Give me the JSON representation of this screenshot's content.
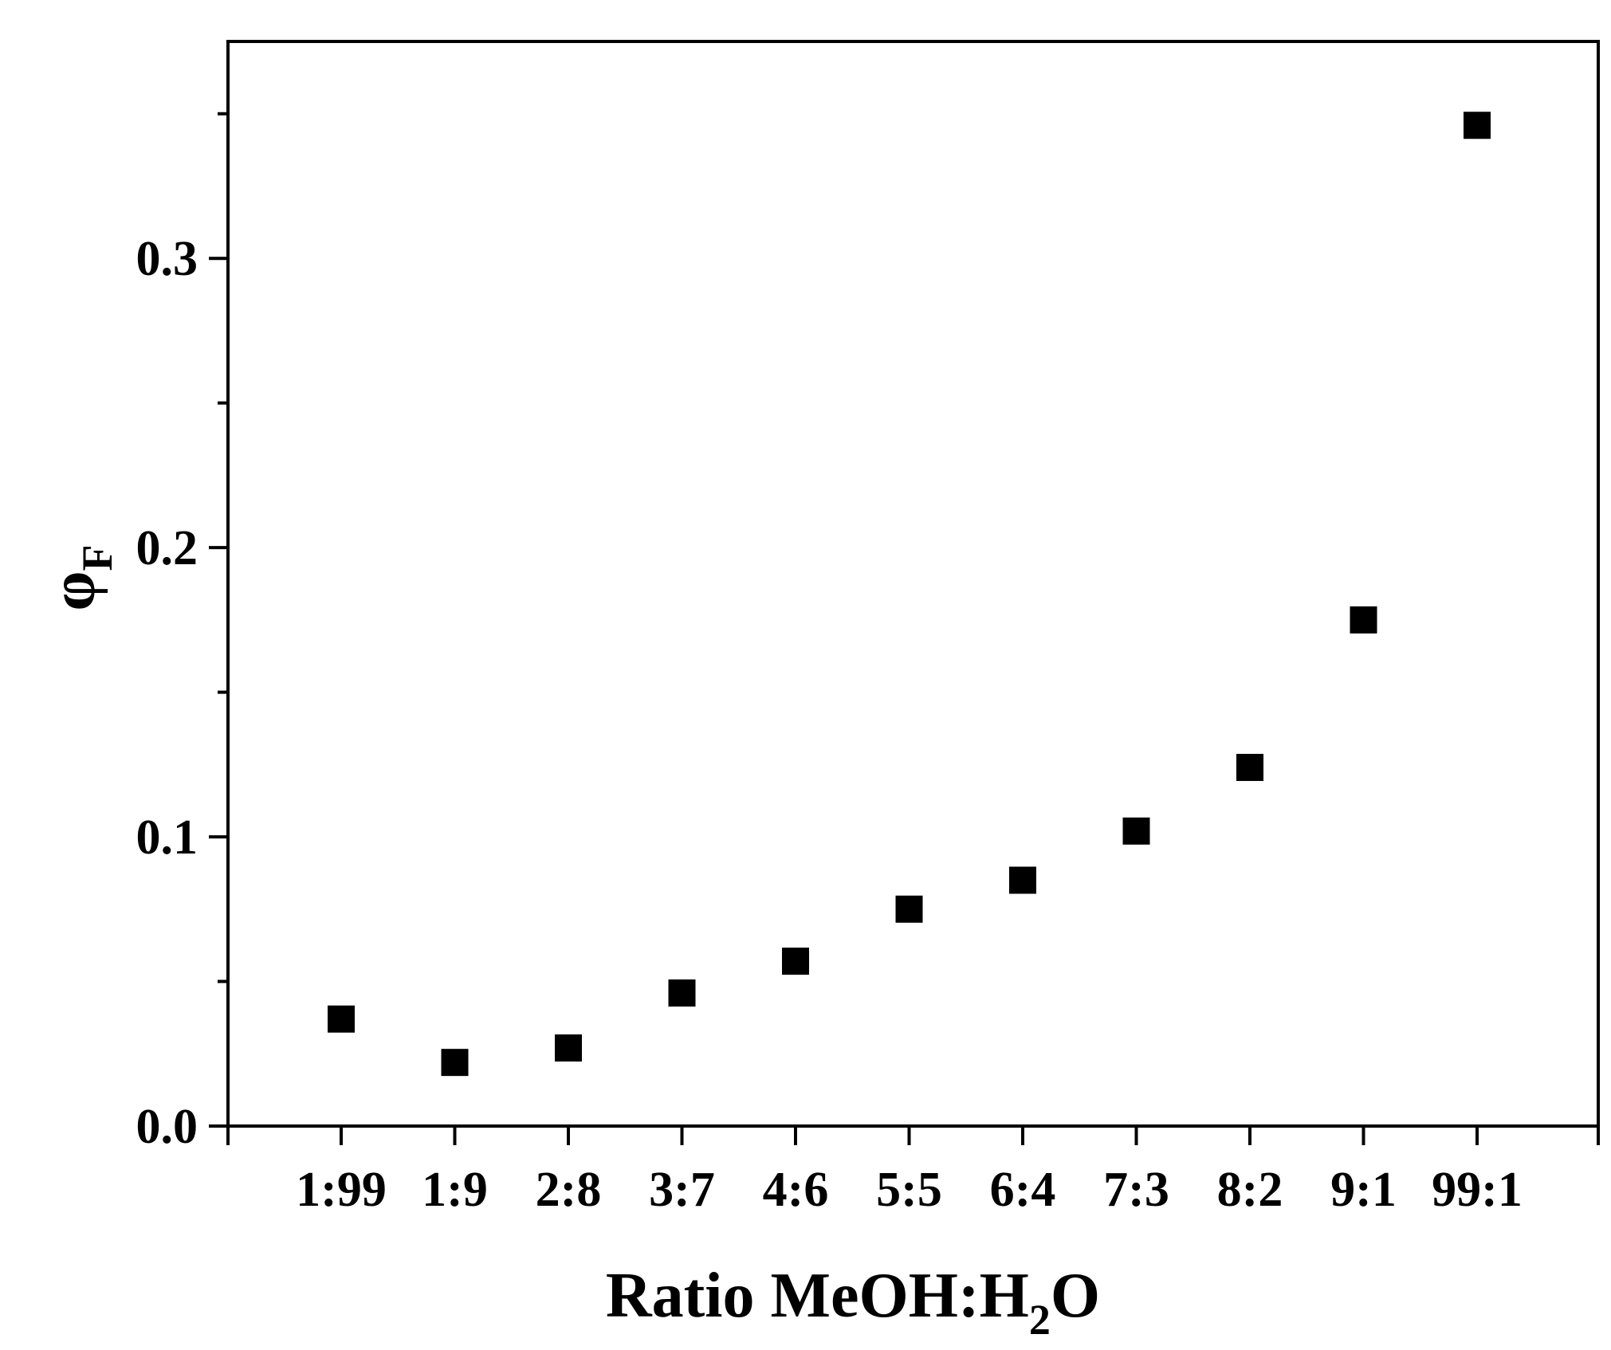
{
  "chart_data": {
    "type": "scatter",
    "title": "",
    "xlabel": {
      "main": "Ratio MeOH:H",
      "subscript": "2",
      "suffix": "O"
    },
    "ylabel": {
      "main": "φ",
      "subscript": "F"
    },
    "categories": [
      "1:99",
      "1:9",
      "2:8",
      "3:7",
      "4:6",
      "5:5",
      "6:4",
      "7:3",
      "8:2",
      "9:1",
      "99:1"
    ],
    "values": [
      0.037,
      0.022,
      0.027,
      0.046,
      0.057,
      0.075,
      0.085,
      0.102,
      0.124,
      0.175,
      0.346
    ],
    "ylim": [
      0.0,
      0.375
    ],
    "yticks": [
      0.0,
      0.1,
      0.2,
      0.3
    ],
    "ytick_labels": [
      "0.0",
      "0.1",
      "0.2",
      "0.3"
    ],
    "yminor_ticks": [
      0.05,
      0.15,
      0.25,
      0.35
    ],
    "marker": "filled-square",
    "marker_color": "#000000",
    "grid": false,
    "legend": "none"
  }
}
